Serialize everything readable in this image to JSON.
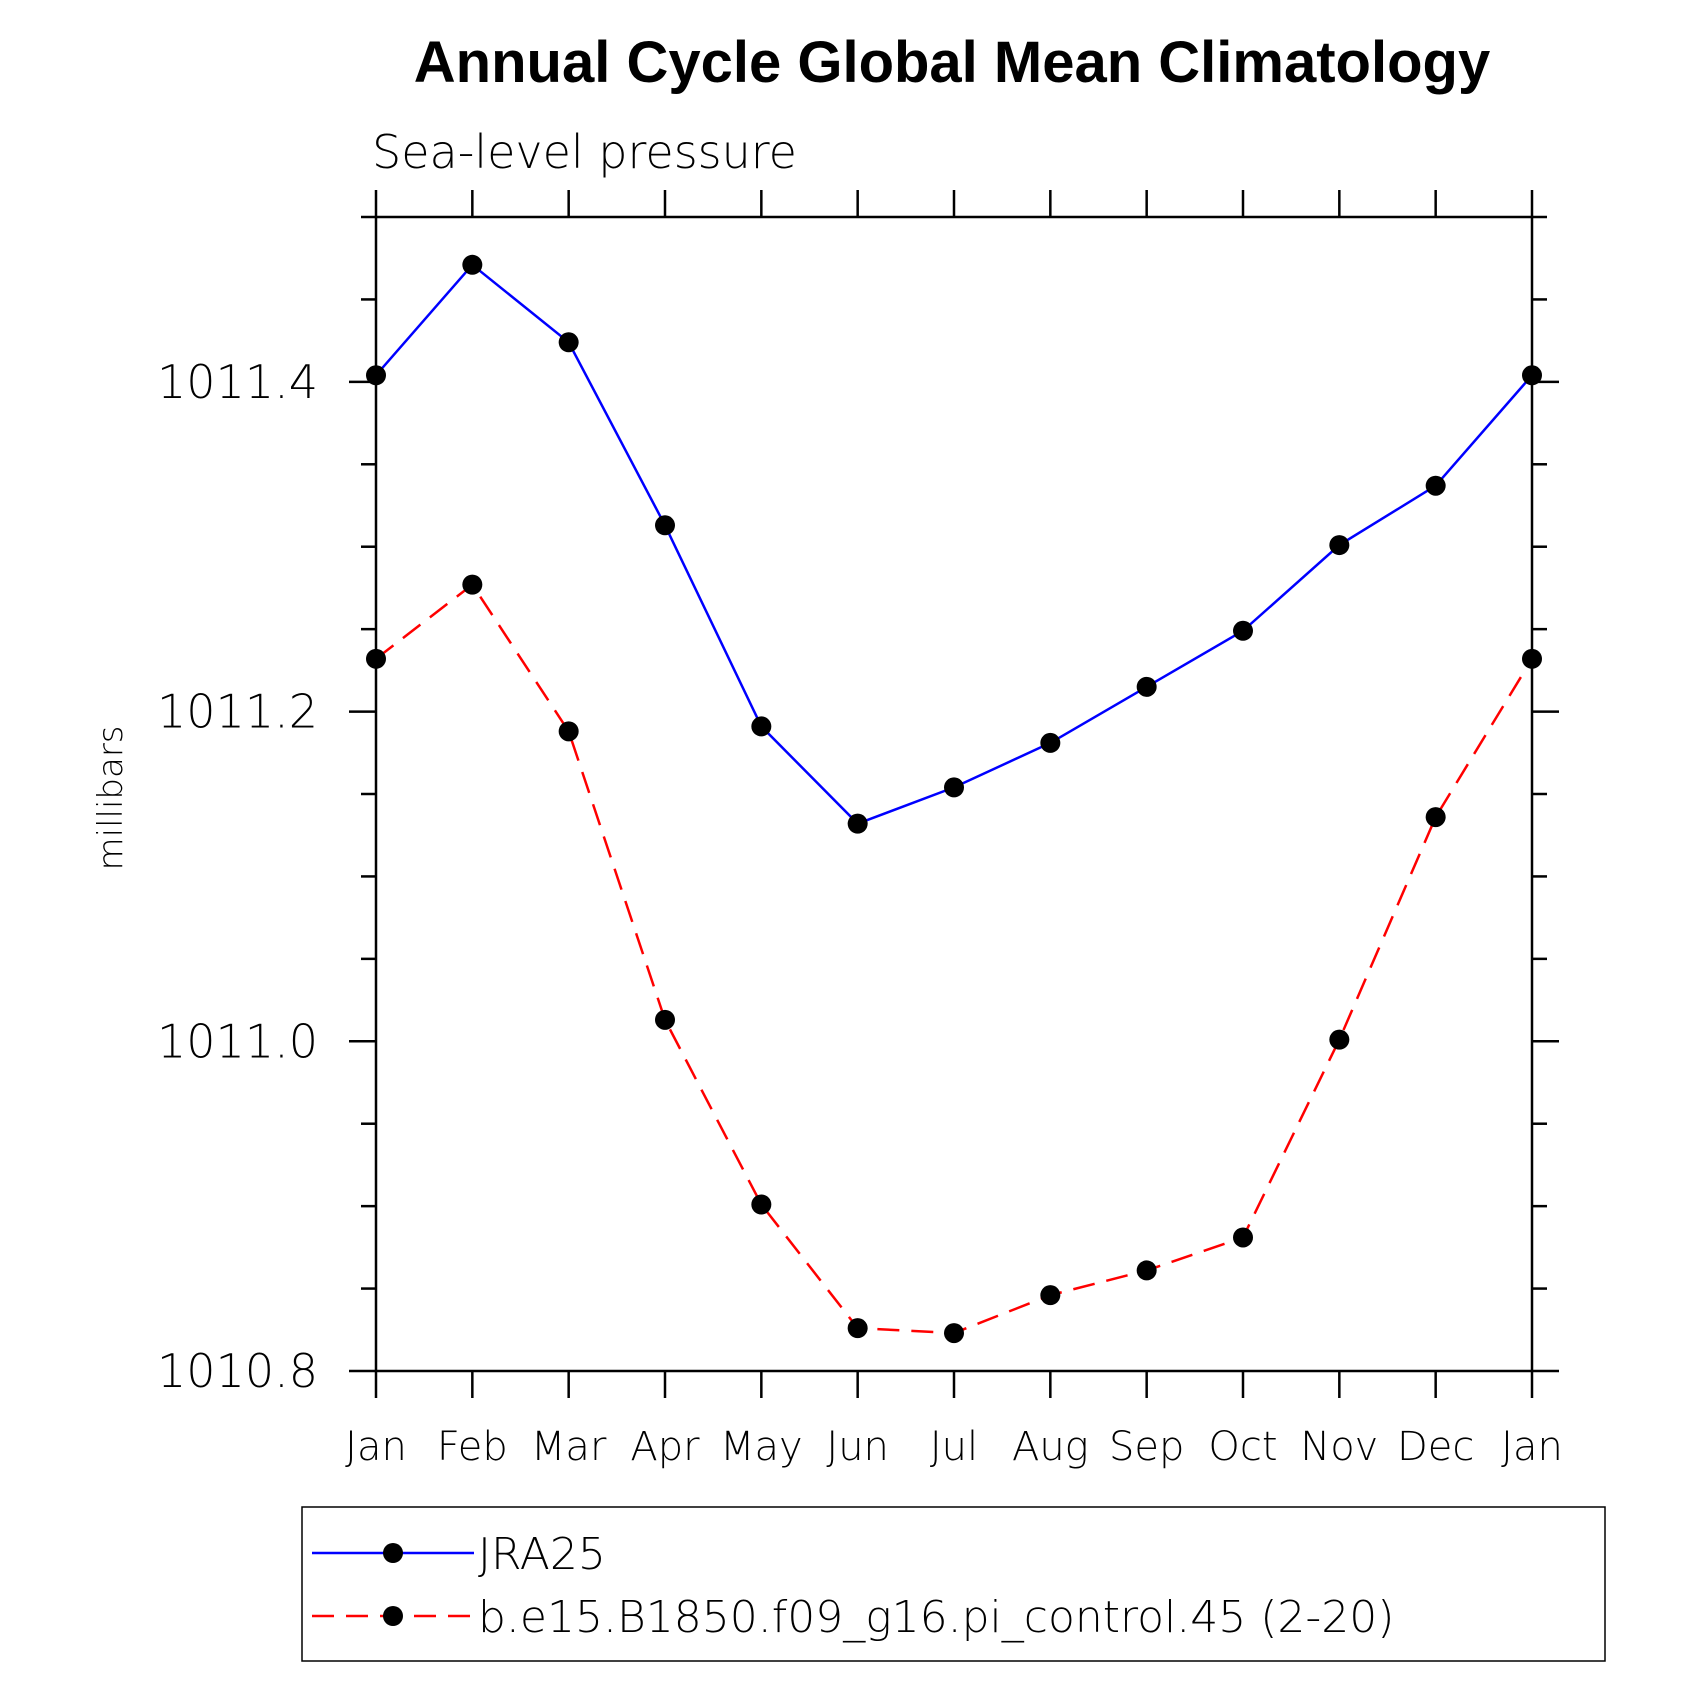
{
  "chart_data": {
    "type": "line",
    "title": "Annual Cycle Global Mean Climatology",
    "subtitle": "Sea-level pressure",
    "xlabel": "",
    "ylabel": "millibars",
    "categories": [
      "Jan",
      "Feb",
      "Mar",
      "Apr",
      "May",
      "Jun",
      "Jul",
      "Aug",
      "Sep",
      "Oct",
      "Nov",
      "Dec",
      "Jan"
    ],
    "ylim": [
      1010.8,
      1011.5
    ],
    "yticks": [
      "1010.8",
      "1011.0",
      "1011.2",
      "1011.4"
    ],
    "ytick_values": [
      1010.8,
      1011.0,
      1011.2,
      1011.4
    ],
    "grid": false,
    "legend_position": "bottom",
    "series": [
      {
        "name": "JRA25",
        "color": "#0000ff",
        "line_style": "solid",
        "marker": "filled-circle",
        "values": [
          1011.404,
          1011.471,
          1011.424,
          1011.313,
          1011.191,
          1011.132,
          1011.154,
          1011.181,
          1011.215,
          1011.249,
          1011.301,
          1011.337,
          1011.404
        ]
      },
      {
        "name": "b.e15.B1850.f09_g16.pi_control.45 (2-20)",
        "color": "#ff0000",
        "line_style": "dashed",
        "marker": "filled-circle",
        "values": [
          1011.232,
          1011.277,
          1011.188,
          1011.013,
          1010.901,
          1010.826,
          1010.823,
          1010.846,
          1010.861,
          1010.881,
          1011.001,
          1011.136,
          1011.232
        ]
      }
    ]
  }
}
